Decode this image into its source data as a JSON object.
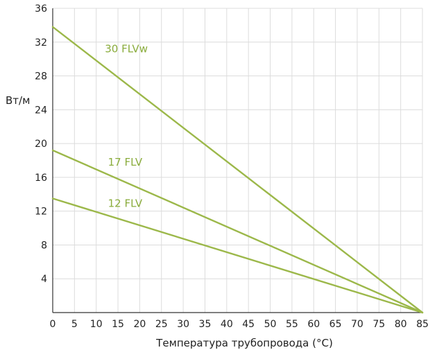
{
  "chart_data": {
    "type": "line",
    "xlabel": "Температура трубопровода (°C)",
    "ylabel": "Вт/м",
    "xlim": [
      0,
      85
    ],
    "ylim": [
      0,
      36
    ],
    "x_ticks": [
      "0",
      "5",
      "10",
      "15",
      "20",
      "25",
      "30",
      "35",
      "40",
      "45",
      "50",
      "55",
      "60",
      "65",
      "70",
      "75",
      "80",
      "85"
    ],
    "y_ticks": [
      "4",
      "8",
      "12",
      "16",
      "20",
      "24",
      "28",
      "32",
      "36"
    ],
    "x_tick_values": [
      0,
      5,
      10,
      15,
      20,
      25,
      30,
      35,
      40,
      45,
      50,
      55,
      60,
      65,
      70,
      75,
      80,
      85
    ],
    "y_tick_values": [
      4,
      8,
      12,
      16,
      20,
      24,
      28,
      32,
      36
    ],
    "grid": true,
    "line_color": "#9cb84a",
    "label_color": "#8aac3c",
    "series": [
      {
        "name": "30 FLVw",
        "x": [
          0,
          85
        ],
        "y": [
          33.8,
          0
        ],
        "label_at": [
          12,
          31.2
        ]
      },
      {
        "name": "17 FLV",
        "x": [
          0,
          85
        ],
        "y": [
          19.2,
          0
        ],
        "label_at": [
          12.7,
          17.8
        ]
      },
      {
        "name": "12 FLV",
        "x": [
          0,
          85
        ],
        "y": [
          13.5,
          0
        ],
        "label_at": [
          12.7,
          12.9
        ]
      }
    ]
  }
}
